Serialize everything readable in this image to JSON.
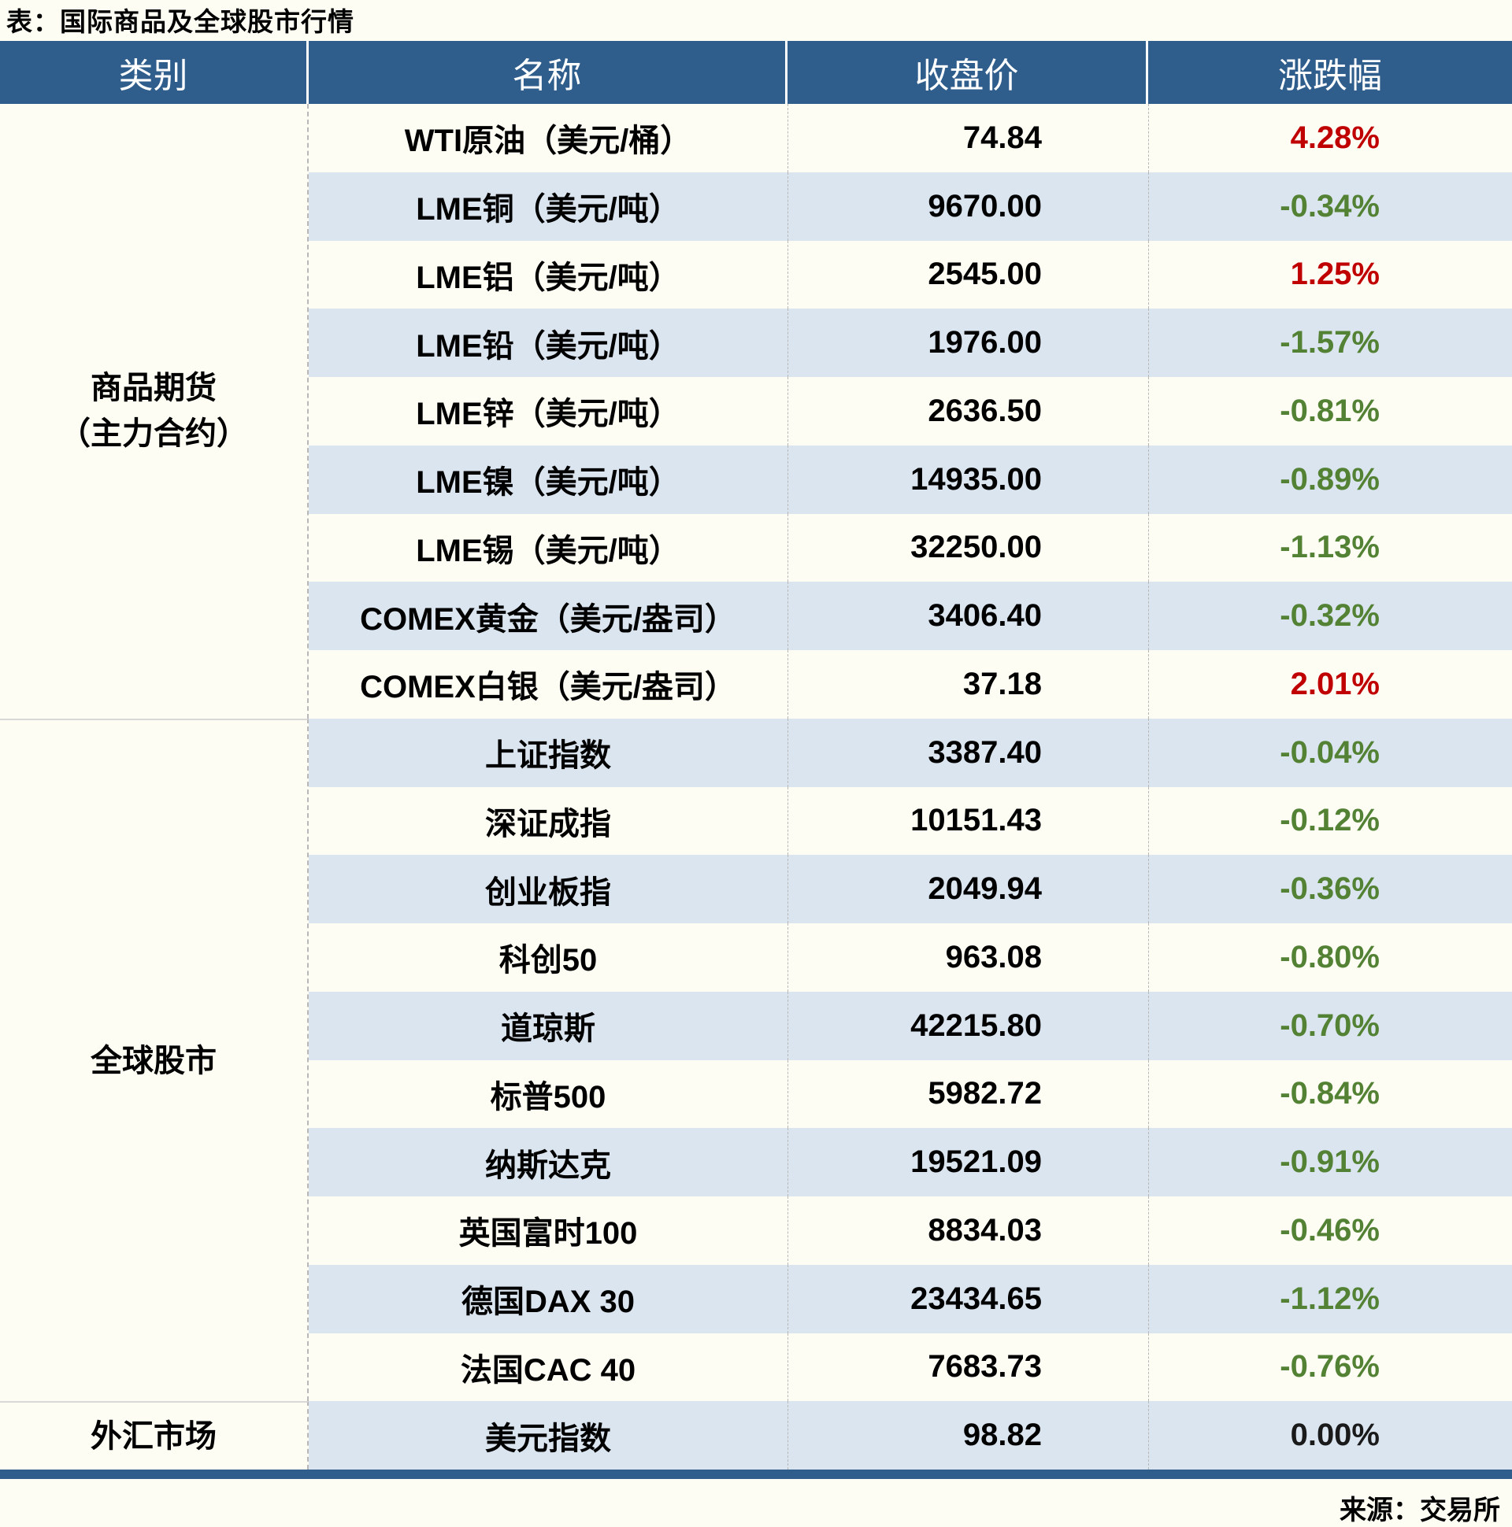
{
  "title": "表：国际商品及全球股市行情",
  "header": {
    "columns": [
      "类别",
      "名称",
      "收盘价",
      "涨跌幅"
    ]
  },
  "sections": [
    {
      "category_lines": [
        "商品期货",
        "（主力合约）"
      ],
      "rows": [
        {
          "name": "WTI原油（美元/桶）",
          "close": "74.84",
          "change": "4.28%",
          "direction": "up"
        },
        {
          "name": "LME铜（美元/吨）",
          "close": "9670.00",
          "change": "-0.34%",
          "direction": "down"
        },
        {
          "name": "LME铝（美元/吨）",
          "close": "2545.00",
          "change": "1.25%",
          "direction": "up"
        },
        {
          "name": "LME铅（美元/吨）",
          "close": "1976.00",
          "change": "-1.57%",
          "direction": "down"
        },
        {
          "name": "LME锌（美元/吨）",
          "close": "2636.50",
          "change": "-0.81%",
          "direction": "down"
        },
        {
          "name": "LME镍（美元/吨）",
          "close": "14935.00",
          "change": "-0.89%",
          "direction": "down"
        },
        {
          "name": "LME锡（美元/吨）",
          "close": "32250.00",
          "change": "-1.13%",
          "direction": "down"
        },
        {
          "name": "COMEX黄金（美元/盎司）",
          "close": "3406.40",
          "change": "-0.32%",
          "direction": "down"
        },
        {
          "name": "COMEX白银（美元/盎司）",
          "close": "37.18",
          "change": "2.01%",
          "direction": "up"
        }
      ]
    },
    {
      "category_lines": [
        "全球股市"
      ],
      "rows": [
        {
          "name": "上证指数",
          "close": "3387.40",
          "change": "-0.04%",
          "direction": "down"
        },
        {
          "name": "深证成指",
          "close": "10151.43",
          "change": "-0.12%",
          "direction": "down"
        },
        {
          "name": "创业板指",
          "close": "2049.94",
          "change": "-0.36%",
          "direction": "down"
        },
        {
          "name": "科创50",
          "close": "963.08",
          "change": "-0.80%",
          "direction": "down"
        },
        {
          "name": "道琼斯",
          "close": "42215.80",
          "change": "-0.70%",
          "direction": "down"
        },
        {
          "name": "标普500",
          "close": "5982.72",
          "change": "-0.84%",
          "direction": "down"
        },
        {
          "name": "纳斯达克",
          "close": "19521.09",
          "change": "-0.91%",
          "direction": "down"
        },
        {
          "name": "英国富时100",
          "close": "8834.03",
          "change": "-0.46%",
          "direction": "down"
        },
        {
          "name": "德国DAX 30",
          "close": "23434.65",
          "change": "-1.12%",
          "direction": "down"
        },
        {
          "name": "法国CAC 40",
          "close": "7683.73",
          "change": "-0.76%",
          "direction": "down"
        }
      ]
    },
    {
      "category_lines": [
        "外汇市场"
      ],
      "rows": [
        {
          "name": "美元指数",
          "close": "98.82",
          "change": "0.00%",
          "direction": "flat"
        }
      ]
    }
  ],
  "footer": {
    "source": "来源：交易所"
  },
  "colors": {
    "header_bg": "#2F5D8C",
    "row_alt_bg": "#DBE5F0",
    "page_bg": "#FDFDF4",
    "up_red": "#C00000",
    "down_green": "#548235",
    "flat_black": "#1A1A1A"
  },
  "chart_data": {
    "type": "table",
    "title": "表：国际商品及全球股市行情",
    "columns": [
      "类别",
      "名称",
      "收盘价",
      "涨跌幅"
    ],
    "rows": [
      {
        "category": "商品期货（主力合约）",
        "name": "WTI原油（美元/桶）",
        "close": 74.84,
        "change_pct": 4.28
      },
      {
        "category": "商品期货（主力合约）",
        "name": "LME铜（美元/吨）",
        "close": 9670.0,
        "change_pct": -0.34
      },
      {
        "category": "商品期货（主力合约）",
        "name": "LME铝（美元/吨）",
        "close": 2545.0,
        "change_pct": 1.25
      },
      {
        "category": "商品期货（主力合约）",
        "name": "LME铅（美元/吨）",
        "close": 1976.0,
        "change_pct": -1.57
      },
      {
        "category": "商品期货（主力合约）",
        "name": "LME锌（美元/吨）",
        "close": 2636.5,
        "change_pct": -0.81
      },
      {
        "category": "商品期货（主力合约）",
        "name": "LME镍（美元/吨）",
        "close": 14935.0,
        "change_pct": -0.89
      },
      {
        "category": "商品期货（主力合约）",
        "name": "LME锡（美元/吨）",
        "close": 32250.0,
        "change_pct": -1.13
      },
      {
        "category": "商品期货（主力合约）",
        "name": "COMEX黄金（美元/盎司）",
        "close": 3406.4,
        "change_pct": -0.32
      },
      {
        "category": "商品期货（主力合约）",
        "name": "COMEX白银（美元/盎司）",
        "close": 37.18,
        "change_pct": 2.01
      },
      {
        "category": "全球股市",
        "name": "上证指数",
        "close": 3387.4,
        "change_pct": -0.04
      },
      {
        "category": "全球股市",
        "name": "深证成指",
        "close": 10151.43,
        "change_pct": -0.12
      },
      {
        "category": "全球股市",
        "name": "创业板指",
        "close": 2049.94,
        "change_pct": -0.36
      },
      {
        "category": "全球股市",
        "name": "科创50",
        "close": 963.08,
        "change_pct": -0.8
      },
      {
        "category": "全球股市",
        "name": "道琼斯",
        "close": 42215.8,
        "change_pct": -0.7
      },
      {
        "category": "全球股市",
        "name": "标普500",
        "close": 5982.72,
        "change_pct": -0.84
      },
      {
        "category": "全球股市",
        "name": "纳斯达克",
        "close": 19521.09,
        "change_pct": -0.91
      },
      {
        "category": "全球股市",
        "name": "英国富时100",
        "close": 8834.03,
        "change_pct": -0.46
      },
      {
        "category": "全球股市",
        "name": "德国DAX 30",
        "close": 23434.65,
        "change_pct": -1.12
      },
      {
        "category": "全球股市",
        "name": "法国CAC 40",
        "close": 7683.73,
        "change_pct": -0.76
      },
      {
        "category": "外汇市场",
        "name": "美元指数",
        "close": 98.82,
        "change_pct": 0.0
      }
    ],
    "notes": "up=red #C00000, down=green #548235, flat=black; alternating row shading white / light blue"
  }
}
